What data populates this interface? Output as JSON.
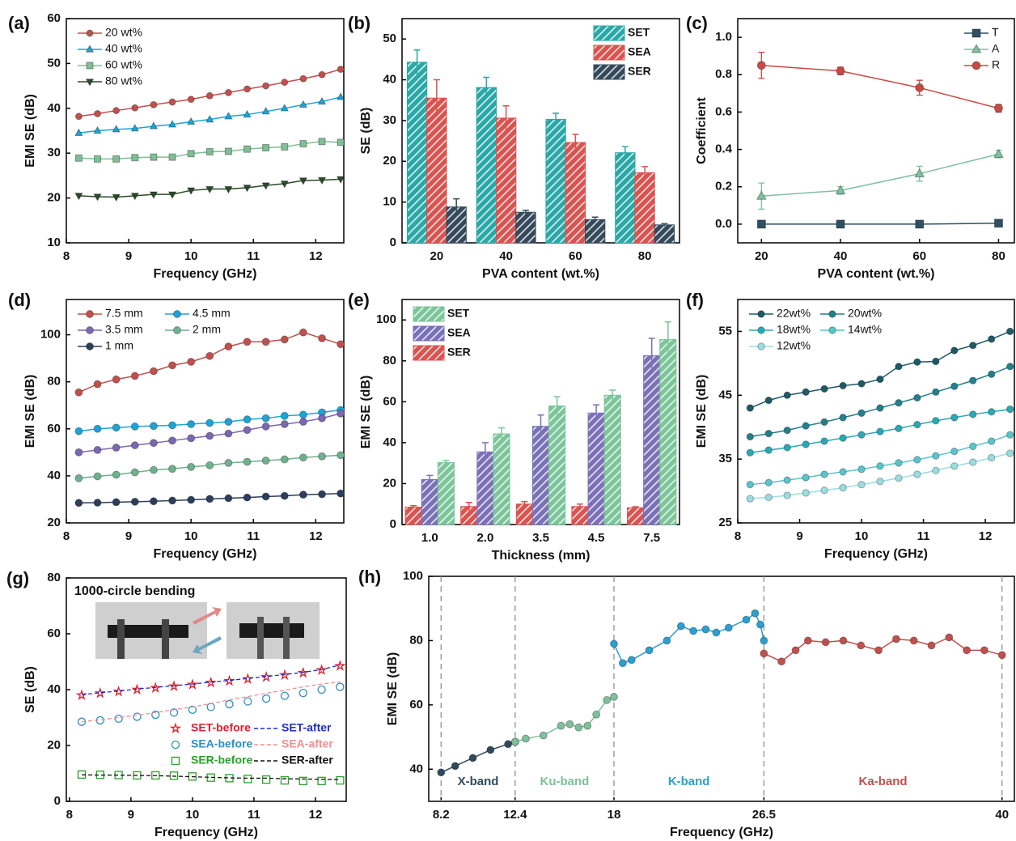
{
  "chart_data": [
    {
      "type": "line",
      "label": "(a)",
      "x_label": "Frequency (GHz)",
      "y_label": "EMI SE (dB)",
      "xlim": [
        8,
        12.45
      ],
      "ylim": [
        10,
        60
      ],
      "xticks": [
        8,
        9,
        10,
        11,
        12
      ],
      "yticks": [
        10,
        20,
        30,
        40,
        50,
        60
      ],
      "legend": "upper left",
      "x": [
        8.2,
        8.5,
        8.8,
        9.1,
        9.4,
        9.7,
        10.0,
        10.3,
        10.6,
        10.9,
        11.2,
        11.5,
        11.8,
        12.1,
        12.4
      ],
      "series": [
        {
          "name": "20 wt%",
          "color": "#c0504d",
          "marker": "circle",
          "values": [
            38.2,
            38.8,
            39.5,
            40.1,
            40.8,
            41.4,
            42.0,
            42.8,
            43.5,
            44.3,
            45.0,
            45.8,
            46.6,
            47.5,
            48.7
          ]
        },
        {
          "name": "40 wt%",
          "color": "#1ea3d6",
          "marker": "triangle",
          "values": [
            34.5,
            35.0,
            35.3,
            35.5,
            36.0,
            36.4,
            37.0,
            37.5,
            38.2,
            38.6,
            39.3,
            40.0,
            40.8,
            41.5,
            42.5
          ]
        },
        {
          "name": "60 wt%",
          "color": "#7fbf95",
          "marker": "square",
          "values": [
            28.9,
            28.7,
            28.7,
            29.0,
            29.1,
            29.1,
            29.9,
            30.3,
            30.4,
            30.9,
            31.2,
            31.4,
            32.1,
            32.6,
            32.4
          ]
        },
        {
          "name": "80 wt%",
          "color": "#2b4a2b",
          "marker": "triangle-down",
          "values": [
            20.5,
            20.3,
            20.2,
            20.5,
            20.8,
            20.8,
            21.7,
            22.0,
            22.0,
            22.3,
            22.8,
            23.2,
            23.9,
            24.0,
            24.2
          ]
        }
      ]
    },
    {
      "type": "bar",
      "label": "(b)",
      "x_label": "PVA content (wt.%)",
      "y_label": "SE (dB)",
      "ylim": [
        0,
        55
      ],
      "yticks": [
        0,
        10,
        20,
        30,
        40,
        50
      ],
      "legend": "upper right",
      "categories": [
        "20",
        "40",
        "60",
        "80"
      ],
      "series": [
        {
          "name": "SET",
          "color": "#2aa7a7",
          "values": [
            44.3,
            38.1,
            30.3,
            22.1
          ],
          "errors": [
            3.0,
            2.5,
            1.5,
            1.5
          ]
        },
        {
          "name": "SEA",
          "color": "#d9534f",
          "values": [
            35.5,
            30.6,
            24.6,
            17.2
          ],
          "errors": [
            4.5,
            3.0,
            2.0,
            1.5
          ]
        },
        {
          "name": "SER",
          "color": "#34495a",
          "values": [
            8.8,
            7.5,
            5.7,
            4.4
          ],
          "errors": [
            2.0,
            0.5,
            0.6,
            0.3
          ]
        }
      ]
    },
    {
      "type": "line",
      "label": "(c)",
      "x_label": "PVA content (wt.%)",
      "y_label": "Coefficient",
      "xlim": [
        14,
        84
      ],
      "ylim": [
        -0.1,
        1.1
      ],
      "xticks": [
        20,
        40,
        60,
        80
      ],
      "yticks": [
        {
          "value": 0,
          "label": "0.0"
        },
        {
          "value": 0.2,
          "label": "0.2"
        },
        {
          "value": 0.4,
          "label": "0.4"
        },
        {
          "value": 0.6,
          "label": "0.6"
        },
        {
          "value": 0.8,
          "label": "0.8"
        },
        {
          "value": 1,
          "label": "1.0"
        }
      ],
      "legend": "upper right",
      "x": [
        20,
        40,
        60,
        80
      ],
      "series": [
        {
          "name": "T",
          "color": "#2f5060",
          "marker": "square",
          "values": [
            0,
            0,
            0,
            0.005
          ]
        },
        {
          "name": "A",
          "color": "#7fc0a0",
          "marker": "triangle",
          "values": [
            0.15,
            0.18,
            0.27,
            0.375
          ],
          "errors": [
            0.07,
            0.02,
            0.04,
            0.02
          ]
        },
        {
          "name": "R",
          "color": "#c94a45",
          "marker": "circle",
          "values": [
            0.85,
            0.82,
            0.73,
            0.62
          ],
          "errors": [
            0.07,
            0.02,
            0.04,
            0.02
          ]
        }
      ]
    },
    {
      "type": "line",
      "label": "(d)",
      "x_label": "Frequency (GHz)",
      "y_label": "EMI SE (dB)",
      "xlim": [
        8,
        12.45
      ],
      "ylim": [
        20,
        115
      ],
      "xticks": [
        8,
        9,
        10,
        11,
        12
      ],
      "yticks": [
        20,
        40,
        60,
        80,
        100
      ],
      "legend": "upper left",
      "legend_columns": 2,
      "x": [
        8.2,
        8.5,
        8.8,
        9.1,
        9.4,
        9.7,
        10.0,
        10.3,
        10.6,
        10.9,
        11.2,
        11.5,
        11.8,
        12.1,
        12.4
      ],
      "series": [
        {
          "name": "7.5 mm",
          "color": "#c0504d",
          "marker": "circle",
          "values": [
            75.5,
            79,
            81,
            82.5,
            84.5,
            87,
            88.5,
            91,
            95,
            97,
            97,
            98,
            101,
            98.5,
            96
          ]
        },
        {
          "name": "4.5 mm",
          "color": "#1fa3d4",
          "marker": "circle",
          "values": [
            59,
            60,
            60.5,
            61,
            61.2,
            61.5,
            62,
            62.5,
            63,
            64,
            64.5,
            65.5,
            66,
            67,
            68
          ]
        },
        {
          "name": "3.5 mm",
          "color": "#7b68b0",
          "marker": "circle",
          "values": [
            50,
            51,
            52,
            53,
            54,
            55,
            56,
            57,
            58,
            59.5,
            61,
            62,
            63,
            64.5,
            66.5
          ]
        },
        {
          "name": "2 mm",
          "color": "#6fb08f",
          "marker": "circle",
          "values": [
            39,
            39.8,
            40.5,
            41.5,
            42.5,
            43,
            43.8,
            44.5,
            45.5,
            46,
            46.5,
            47,
            47.8,
            48.3,
            48.8
          ]
        },
        {
          "name": "1 mm",
          "color": "#2d3e5c",
          "marker": "circle",
          "values": [
            28.5,
            28.6,
            28.8,
            29,
            29.2,
            29.5,
            29.8,
            30.2,
            30.5,
            30.8,
            31.2,
            31.5,
            32,
            32.2,
            32.5
          ]
        }
      ]
    },
    {
      "type": "bar",
      "label": "(e)",
      "x_label": "Thickness (mm)",
      "y_label": "EMI SE (dB)",
      "ylim": [
        0,
        110
      ],
      "yticks": [
        0,
        20,
        40,
        60,
        80,
        100
      ],
      "legend": "upper left",
      "legend_reverse": true,
      "categories": [
        "1.0",
        "2.0",
        "3.5",
        "4.5",
        "7.5"
      ],
      "series": [
        {
          "name": "SER",
          "color": "#d9534f",
          "values": [
            8.5,
            8.8,
            10,
            8.8,
            8.2
          ],
          "errors": [
            0.7,
            2,
            1.2,
            1.2,
            0.5
          ]
        },
        {
          "name": "SEA",
          "color": "#7a70b8",
          "values": [
            22,
            35.5,
            48,
            54.5,
            82.5
          ],
          "errors": [
            2,
            4.5,
            5.5,
            4,
            8.5
          ]
        },
        {
          "name": "SET",
          "color": "#7cc49a",
          "values": [
            30.3,
            44.3,
            58,
            63.2,
            90.5
          ],
          "errors": [
            1,
            3,
            4.5,
            2.5,
            8.5
          ]
        }
      ]
    },
    {
      "type": "line",
      "label": "(f)",
      "x_label": "Frequency (GHz)",
      "y_label": "EMI SE (dB)",
      "xlim": [
        8,
        12.47
      ],
      "ylim": [
        25,
        60
      ],
      "xticks": [
        8,
        9,
        10,
        11,
        12
      ],
      "yticks": [
        25,
        35,
        45,
        55
      ],
      "legend": "upper left",
      "legend_columns": 2,
      "x": [
        8.2,
        8.5,
        8.8,
        9.1,
        9.4,
        9.7,
        10.0,
        10.3,
        10.6,
        10.9,
        11.2,
        11.5,
        11.8,
        12.1,
        12.4
      ],
      "series": [
        {
          "name": "22wt%",
          "color": "#1e5a66",
          "marker": "circle",
          "values": [
            43,
            44.2,
            45,
            45.5,
            46,
            46.5,
            46.8,
            47.5,
            49.5,
            50.2,
            50.3,
            52,
            52.8,
            53.8,
            55
          ]
        },
        {
          "name": "20wt%",
          "color": "#237f8c",
          "marker": "circle",
          "values": [
            38.5,
            39,
            39.5,
            40.2,
            40.8,
            41.5,
            42.2,
            43,
            43.8,
            44.6,
            45.5,
            46.4,
            47.3,
            48.3,
            49.5
          ]
        },
        {
          "name": "18wt%",
          "color": "#2aa9b4",
          "marker": "circle",
          "values": [
            36,
            36.4,
            36.8,
            37.3,
            37.8,
            38.3,
            38.8,
            39.3,
            39.8,
            40.4,
            41,
            41.5,
            42,
            42.4,
            42.8
          ]
        },
        {
          "name": "14wt%",
          "color": "#5ac4cc",
          "marker": "circle",
          "values": [
            31,
            31.3,
            31.7,
            32.1,
            32.6,
            33,
            33.4,
            33.9,
            34.4,
            34.9,
            35.5,
            36.2,
            37,
            37.8,
            38.8
          ]
        },
        {
          "name": "12wt%",
          "color": "#9adde0",
          "marker": "circle",
          "values": [
            28.8,
            29,
            29.3,
            29.7,
            30.1,
            30.5,
            31,
            31.5,
            32,
            32.6,
            33.2,
            33.9,
            34.5,
            35.2,
            35.9
          ]
        }
      ]
    },
    {
      "type": "line",
      "label": "(g)",
      "x_label": "Frequency (GHz)",
      "y_label": "SE (dB)",
      "annotation": "1000-circle bending",
      "xlim": [
        7.95,
        12.5
      ],
      "ylim": [
        0,
        80
      ],
      "xticks": [
        8,
        9,
        10,
        11,
        12
      ],
      "yticks": [
        0,
        20,
        40,
        60,
        80
      ],
      "legend": "lower right",
      "legend_columns": 2,
      "legend_text_colored": true,
      "x": [
        8.2,
        8.5,
        8.8,
        9.1,
        9.4,
        9.7,
        10.0,
        10.3,
        10.6,
        10.9,
        11.2,
        11.5,
        11.8,
        12.1,
        12.4
      ],
      "series": [
        {
          "name": "SET-before",
          "color": "#e0202a",
          "marker": "star",
          "line": false,
          "values": [
            38,
            38.7,
            39.3,
            40,
            40.6,
            41.2,
            41.8,
            42.5,
            43.1,
            43.8,
            44.5,
            45.2,
            46,
            47,
            48.5
          ]
        },
        {
          "name": "SET-after",
          "color": "#1f2fd0",
          "dash": true,
          "values": [
            38.2,
            38.9,
            39.5,
            40.2,
            40.8,
            41.4,
            42.0,
            42.7,
            43.3,
            44.0,
            44.7,
            45.4,
            46.2,
            47.2,
            48.8
          ]
        },
        {
          "name": "SEA-before",
          "color": "#2f8fbf",
          "marker": "open-circle",
          "line": false,
          "values": [
            28.5,
            29,
            29.6,
            30.3,
            31,
            31.8,
            32.8,
            33.8,
            34.8,
            35.8,
            36.8,
            37.8,
            38.8,
            40,
            41
          ]
        },
        {
          "name": "SEA-after",
          "color": "#f09090",
          "dash": true,
          "values": [
            28.5,
            29.2,
            30,
            30.8,
            31.8,
            32.8,
            33.8,
            35,
            36.3,
            37.5,
            38.7,
            39.8,
            41,
            42,
            42.8
          ]
        },
        {
          "name": "SER-before",
          "color": "#2aa02a",
          "marker": "open-square",
          "line": false,
          "values": [
            9.6,
            9.5,
            9.4,
            9.3,
            9.3,
            9.2,
            8.9,
            8.5,
            8.3,
            8.0,
            7.8,
            7.5,
            7.3,
            7.3,
            7.5
          ]
        },
        {
          "name": "SER-after",
          "color": "#111111",
          "dash": true,
          "values": [
            9.5,
            9.4,
            9.4,
            9.3,
            9.2,
            9.0,
            8.8,
            8.6,
            8.4,
            8.3,
            8.3,
            8.1,
            8.0,
            7.9,
            7.8
          ]
        }
      ]
    },
    {
      "type": "line",
      "label": "(h)",
      "x_label": "Frequency (GHz)",
      "y_label": "EMI SE (dB)",
      "xlim": [
        7.5,
        40.7
      ],
      "ylim": [
        30,
        100
      ],
      "xticks": [
        8.2,
        12.4,
        18,
        26.5,
        40
      ],
      "yticks": [
        40,
        60,
        80,
        100
      ],
      "xgrid": true,
      "band_labels": [
        "X-band",
        "Ku-band",
        "K-band",
        "Ka-band"
      ],
      "series": [
        {
          "color": "#2f4a5e",
          "marker": "circle",
          "x": [
            8.2,
            9,
            10,
            11,
            12,
            12.4
          ],
          "values": [
            39,
            41,
            43.5,
            46,
            47.8,
            48.5
          ]
        },
        {
          "color": "#7fbf9a",
          "marker": "circle",
          "x": [
            12.4,
            13,
            14,
            15,
            15.5,
            16,
            16.5,
            17,
            17.6,
            18
          ],
          "values": [
            48.5,
            49.5,
            50.5,
            53.5,
            54,
            53,
            53.5,
            57,
            61.5,
            62.5
          ]
        },
        {
          "color": "#2a9fd0",
          "marker": "circle",
          "x": [
            18,
            18.5,
            19,
            20,
            21,
            21.8,
            22.5,
            23.2,
            23.8,
            24.5,
            25.5,
            26,
            26.3,
            26.5
          ],
          "values": [
            79,
            73,
            74,
            77,
            80,
            84.5,
            83,
            83.5,
            82.5,
            84,
            86.5,
            88.5,
            85,
            80
          ]
        },
        {
          "color": "#c0504d",
          "marker": "circle",
          "x": [
            26.5,
            27.5,
            28.3,
            29,
            30,
            31,
            32,
            33,
            34,
            35,
            36,
            37,
            38,
            39,
            40
          ],
          "values": [
            76,
            73.5,
            77,
            80,
            79.5,
            80,
            78.5,
            77,
            80.5,
            80,
            78.5,
            81,
            77,
            77,
            75.5
          ]
        }
      ]
    }
  ]
}
